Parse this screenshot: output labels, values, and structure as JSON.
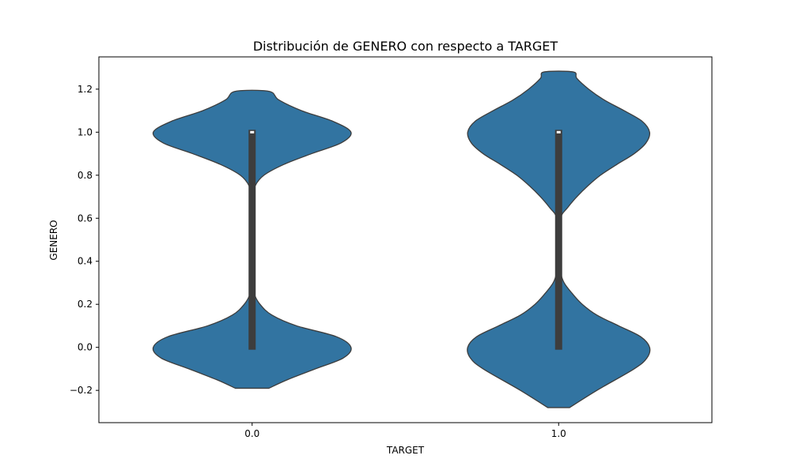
{
  "chart_data": {
    "type": "violin",
    "title": "Distribución de GENERO con respecto a TARGET",
    "xlabel": "TARGET",
    "ylabel": "GENERO",
    "categories": [
      "0.0",
      "1.0"
    ],
    "ylim": [
      -0.35,
      1.35
    ],
    "yticks": [
      -0.2,
      0.0,
      0.2,
      0.4,
      0.6,
      0.8,
      1.0,
      1.2
    ],
    "ytick_labels": [
      "−0.2",
      "0.0",
      "0.2",
      "0.4",
      "0.6",
      "0.8",
      "1.0",
      "1.2"
    ],
    "grid": false,
    "fill_color": "#3274a1",
    "edge_color": "#3d3d3d",
    "violins": [
      {
        "category": "0.0",
        "y_range": [
          -0.19,
          1.19
        ],
        "box": {
          "q1": 0.0,
          "median": 1.0,
          "q3": 1.0,
          "whisker_low": 0.0,
          "whisker_high": 1.0
        },
        "density_profile": [
          [
            -0.19,
            0.17
          ],
          [
            -0.15,
            0.36
          ],
          [
            -0.1,
            0.64
          ],
          [
            -0.05,
            0.92
          ],
          [
            0.0,
            1.0
          ],
          [
            0.05,
            0.85
          ],
          [
            0.1,
            0.45
          ],
          [
            0.15,
            0.2
          ],
          [
            0.2,
            0.08
          ],
          [
            0.25,
            0.02
          ],
          [
            0.3,
            0.01
          ],
          [
            0.4,
            0.01
          ],
          [
            0.5,
            0.01
          ],
          [
            0.6,
            0.01
          ],
          [
            0.7,
            0.012
          ],
          [
            0.75,
            0.03
          ],
          [
            0.8,
            0.12
          ],
          [
            0.85,
            0.32
          ],
          [
            0.9,
            0.6
          ],
          [
            0.95,
            0.9
          ],
          [
            1.0,
            1.0
          ],
          [
            1.05,
            0.82
          ],
          [
            1.1,
            0.5
          ],
          [
            1.15,
            0.27
          ],
          [
            1.19,
            0.17
          ]
        ]
      },
      {
        "category": "1.0",
        "y_range": [
          -0.28,
          1.28
        ],
        "box": {
          "q1": 0.0,
          "median": 1.0,
          "q3": 1.0,
          "whisker_low": 0.0,
          "whisker_high": 1.0
        },
        "density_profile": [
          [
            -0.28,
            0.12
          ],
          [
            -0.2,
            0.42
          ],
          [
            -0.1,
            0.83
          ],
          [
            -0.05,
            0.97
          ],
          [
            0.0,
            1.0
          ],
          [
            0.05,
            0.9
          ],
          [
            0.1,
            0.66
          ],
          [
            0.15,
            0.42
          ],
          [
            0.2,
            0.26
          ],
          [
            0.25,
            0.15
          ],
          [
            0.3,
            0.06
          ],
          [
            0.35,
            0.02
          ],
          [
            0.4,
            0.01
          ],
          [
            0.5,
            0.01
          ],
          [
            0.6,
            0.02
          ],
          [
            0.65,
            0.1
          ],
          [
            0.7,
            0.2
          ],
          [
            0.75,
            0.32
          ],
          [
            0.8,
            0.46
          ],
          [
            0.85,
            0.64
          ],
          [
            0.9,
            0.83
          ],
          [
            0.95,
            0.96
          ],
          [
            1.0,
            1.0
          ],
          [
            1.05,
            0.92
          ],
          [
            1.1,
            0.72
          ],
          [
            1.15,
            0.5
          ],
          [
            1.2,
            0.33
          ],
          [
            1.25,
            0.2
          ],
          [
            1.28,
            0.16
          ]
        ]
      }
    ]
  }
}
